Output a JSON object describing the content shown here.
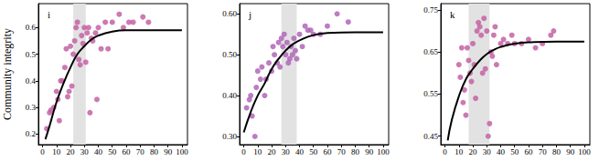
{
  "chart_data": [
    {
      "type": "scatter",
      "title": "i",
      "y_label": "Community integrity",
      "xlim": [
        -3,
        104
      ],
      "xticks": [
        0,
        10,
        20,
        30,
        40,
        50,
        60,
        70,
        80,
        90,
        100
      ],
      "ylim": [
        0.16,
        0.69
      ],
      "yticks": [
        0.2,
        0.3,
        0.4,
        0.5,
        0.6
      ],
      "shaded_range": [
        22,
        31
      ],
      "series": [
        {
          "type": "scatter",
          "color": "#c462a4",
          "x": [
            3,
            5,
            6,
            8,
            10,
            11,
            12,
            13,
            14,
            16,
            17,
            18,
            19,
            20,
            21,
            22,
            23,
            24,
            25,
            26,
            27,
            28,
            29,
            30,
            31,
            32,
            33,
            34,
            35,
            36,
            38,
            39,
            40,
            42,
            45,
            47,
            50,
            55,
            58,
            62,
            65,
            72,
            76
          ],
          "values": [
            0.22,
            0.28,
            0.29,
            0.3,
            0.36,
            0.33,
            0.25,
            0.4,
            0.4,
            0.45,
            0.52,
            0.34,
            0.36,
            0.53,
            0.38,
            0.5,
            0.55,
            0.6,
            0.62,
            0.48,
            0.46,
            0.57,
            0.54,
            0.6,
            0.47,
            0.58,
            0.6,
            0.28,
            0.56,
            0.55,
            0.58,
            0.33,
            0.6,
            0.52,
            0.62,
            0.52,
            0.62,
            0.65,
            0.6,
            0.62,
            0.62,
            0.64,
            0.62
          ]
        },
        {
          "type": "line",
          "color": "#000000",
          "x": [
            2,
            5,
            10,
            15,
            20,
            25,
            30,
            35,
            40,
            50,
            60,
            80,
            100
          ],
          "values": [
            0.18,
            0.23,
            0.32,
            0.39,
            0.45,
            0.5,
            0.53,
            0.555,
            0.57,
            0.585,
            0.59,
            0.59,
            0.59
          ]
        }
      ]
    },
    {
      "type": "scatter",
      "title": "j",
      "xlim": [
        -3,
        104
      ],
      "xticks": [
        0,
        10,
        20,
        30,
        40,
        50,
        60,
        70,
        80,
        90,
        100
      ],
      "ylim": [
        0.28,
        0.625
      ],
      "yticks": [
        {
          "value": 0.3,
          "label": "0.30"
        },
        {
          "value": 0.4,
          "label": "0.40"
        },
        {
          "value": 0.5,
          "label": "0.50"
        },
        {
          "value": 0.6,
          "label": "0.60"
        }
      ],
      "shaded_range": [
        27,
        38
      ],
      "series": [
        {
          "type": "scatter",
          "color": "#b066b8",
          "x": [
            2,
            4,
            5,
            6,
            8,
            9,
            10,
            12,
            13,
            15,
            16,
            18,
            20,
            21,
            22,
            24,
            25,
            26,
            27,
            28,
            29,
            30,
            31,
            32,
            33,
            34,
            35,
            36,
            37,
            38,
            40,
            42,
            44,
            46,
            48,
            50,
            55,
            60,
            67,
            75
          ],
          "values": [
            0.37,
            0.39,
            0.4,
            0.35,
            0.3,
            0.42,
            0.46,
            0.44,
            0.47,
            0.4,
            0.44,
            0.48,
            0.46,
            0.52,
            0.5,
            0.48,
            0.53,
            0.47,
            0.54,
            0.52,
            0.55,
            0.5,
            0.53,
            0.48,
            0.49,
            0.52,
            0.5,
            0.54,
            0.51,
            0.49,
            0.55,
            0.52,
            0.57,
            0.56,
            0.56,
            0.55,
            0.55,
            0.57,
            0.6,
            0.58
          ]
        },
        {
          "type": "line",
          "color": "#000000",
          "x": [
            0,
            5,
            10,
            15,
            20,
            25,
            30,
            35,
            40,
            50,
            60,
            80,
            100
          ],
          "values": [
            0.31,
            0.36,
            0.4,
            0.43,
            0.465,
            0.49,
            0.51,
            0.525,
            0.535,
            0.548,
            0.553,
            0.555,
            0.555
          ]
        }
      ]
    },
    {
      "type": "scatter",
      "title": "k",
      "xlim": [
        -3,
        104
      ],
      "xticks": [
        0,
        10,
        20,
        30,
        40,
        50,
        60,
        70,
        80,
        90,
        100
      ],
      "ylim": [
        0.43,
        0.765
      ],
      "yticks": [
        0.45,
        0.55,
        0.65,
        0.75
      ],
      "shaded_range": [
        17,
        32
      ],
      "series": [
        {
          "type": "scatter",
          "color": "#c462a4",
          "x": [
            10,
            11,
            12,
            13,
            14,
            15,
            16,
            17,
            18,
            19,
            20,
            21,
            22,
            23,
            24,
            25,
            26,
            27,
            28,
            29,
            30,
            31,
            32,
            33,
            34,
            35,
            36,
            37,
            40,
            42,
            45,
            48,
            50,
            55,
            60,
            65,
            70,
            76,
            78
          ],
          "values": [
            0.62,
            0.59,
            0.66,
            0.53,
            0.56,
            0.5,
            0.66,
            0.63,
            0.6,
            0.58,
            0.67,
            0.62,
            0.54,
            0.7,
            0.72,
            0.71,
            0.69,
            0.6,
            0.73,
            0.61,
            0.7,
            0.45,
            0.48,
            0.65,
            0.64,
            0.69,
            0.71,
            0.62,
            0.67,
            0.68,
            0.67,
            0.69,
            0.67,
            0.67,
            0.68,
            0.66,
            0.67,
            0.69,
            0.7
          ]
        },
        {
          "type": "line",
          "color": "#000000",
          "x": [
            2,
            5,
            10,
            15,
            20,
            25,
            30,
            35,
            40,
            50,
            60,
            80,
            100
          ],
          "values": [
            0.44,
            0.49,
            0.545,
            0.585,
            0.61,
            0.63,
            0.645,
            0.655,
            0.662,
            0.67,
            0.673,
            0.675,
            0.675
          ]
        }
      ]
    }
  ]
}
